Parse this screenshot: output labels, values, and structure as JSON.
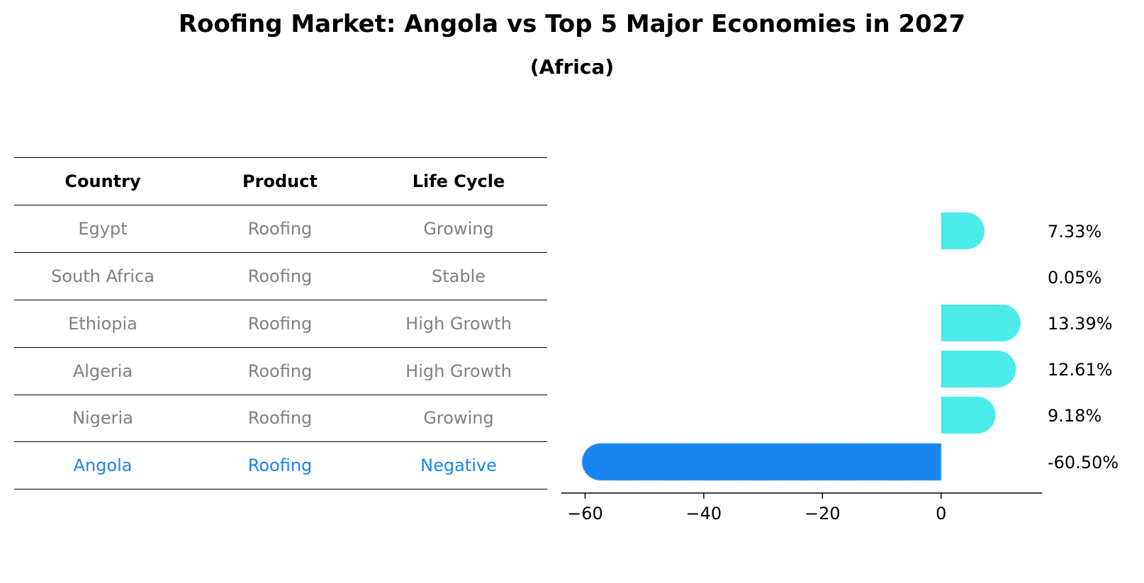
{
  "title": "Roofing Market: Angola vs Top 5 Major Economies in 2027",
  "subtitle": "(Africa)",
  "table": {
    "headers": [
      "Country",
      "Product",
      "Life Cycle"
    ],
    "rows": [
      [
        "Egypt",
        "Roofing",
        "Growing"
      ],
      [
        "South Africa",
        "Roofing",
        "Stable"
      ],
      [
        "Ethiopia",
        "Roofing",
        "High Growth"
      ],
      [
        "Algeria",
        "Roofing",
        "High Growth"
      ],
      [
        "Nigeria",
        "Roofing",
        "Growing"
      ],
      [
        "Angola",
        "Roofing",
        "Negative"
      ]
    ],
    "highlight_row": "Angola"
  },
  "colors": {
    "bar_positive": "#4DEAEA",
    "bar_highlight": "#1A85F0",
    "text_muted": "#808080",
    "text_highlight": "#1A85F0"
  },
  "chart_data": {
    "type": "bar",
    "orientation": "horizontal",
    "categories": [
      "Egypt",
      "South Africa",
      "Ethiopia",
      "Algeria",
      "Nigeria",
      "Angola"
    ],
    "values": [
      7.33,
      0.05,
      13.39,
      12.61,
      9.18,
      -60.5
    ],
    "data_labels": [
      "7.33%",
      "0.05%",
      "13.39%",
      "12.61%",
      "9.18%",
      "-60.50%"
    ],
    "xlim": [
      -64,
      17
    ],
    "xticks": [
      -60,
      -40,
      -20,
      0
    ],
    "xtick_labels": [
      "−60",
      "−40",
      "−20",
      "0"
    ],
    "grid": false
  }
}
